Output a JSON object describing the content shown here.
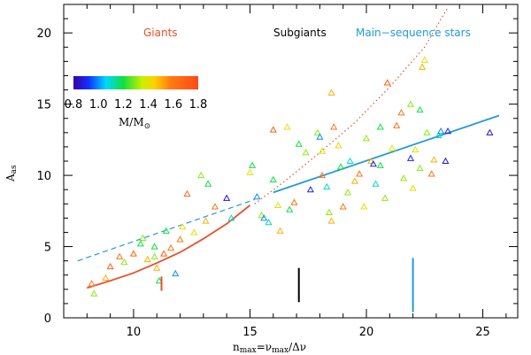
{
  "chart_data": {
    "type": "scatter",
    "title": "",
    "xlabel": "n",
    "xlabel_sub": "max",
    "xlabel_rest": "=ν",
    "xlabel_sub2": "max",
    "xlabel_tail": "/Δν",
    "ylabel": "A",
    "ylabel_sub": "as",
    "xlim": [
      7,
      26.5
    ],
    "ylim": [
      0,
      22
    ],
    "xticks": [
      10,
      15,
      20,
      25
    ],
    "yticks": [
      0,
      5,
      10,
      15,
      20
    ],
    "xtick_labels": [
      "10",
      "15",
      "20",
      "25"
    ],
    "ytick_labels": [
      "0",
      "5",
      "10",
      "15",
      "20"
    ],
    "groups": [
      {
        "name": "Giants",
        "color": "#e8502a",
        "marker_x": 11.2,
        "marker_y0": 1.9,
        "marker_y1": 2.9
      },
      {
        "name": "Subgiants",
        "color": "#000000",
        "marker_x": 17.1,
        "marker_y0": 1.1,
        "marker_y1": 3.5
      },
      {
        "name": "Main−sequence stars",
        "color": "#1f9bd8",
        "marker_x": 22.0,
        "marker_y0": 0.4,
        "marker_y1": 4.2
      }
    ],
    "colorbar": {
      "ticks": [
        0.8,
        1.0,
        1.2,
        1.4,
        1.6,
        1.8
      ],
      "tick_labels": [
        "0.8",
        "1.0",
        "1.2",
        "1.4",
        "1.6",
        "1.8"
      ],
      "label": "M/M",
      "label_sub": "⊙",
      "range": [
        0.8,
        1.8
      ]
    },
    "lines": [
      {
        "name": "giant-fit",
        "style": "solid",
        "color": "#e8502a",
        "x": [
          8.0,
          9.0,
          10.0,
          11.0,
          12.0,
          13.0,
          14.0,
          15.0
        ],
        "y": [
          2.1,
          2.6,
          3.15,
          3.85,
          4.6,
          5.55,
          6.6,
          7.9
        ]
      },
      {
        "name": "main-sequence-fit",
        "style": "solid",
        "color": "#1f9bd8",
        "x": [
          16.0,
          25.7
        ],
        "y": [
          8.8,
          14.2
        ]
      },
      {
        "name": "main-sequence-extrapolation",
        "style": "dashed",
        "color": "#1f9bd8",
        "x": [
          7.6,
          15.2
        ],
        "y": [
          4.0,
          8.3
        ]
      },
      {
        "name": "giant-extrapolation",
        "style": "dotted",
        "color": "#e8502a",
        "x": [
          15.2,
          16.5,
          18.0,
          19.5,
          21.0,
          22.5,
          23.5
        ],
        "y": [
          8.0,
          9.6,
          11.6,
          13.7,
          16.2,
          19.0,
          21.8
        ]
      }
    ],
    "points": [
      {
        "x": 8.2,
        "y": 2.4,
        "m": 1.6
      },
      {
        "x": 8.3,
        "y": 1.7,
        "m": 1.3
      },
      {
        "x": 8.8,
        "y": 2.8,
        "m": 1.5
      },
      {
        "x": 9.0,
        "y": 3.6,
        "m": 1.7
      },
      {
        "x": 9.4,
        "y": 4.3,
        "m": 1.6
      },
      {
        "x": 9.6,
        "y": 3.9,
        "m": 1.3
      },
      {
        "x": 10.0,
        "y": 4.5,
        "m": 1.7
      },
      {
        "x": 10.3,
        "y": 5.2,
        "m": 1.2
      },
      {
        "x": 10.4,
        "y": 5.6,
        "m": 1.3
      },
      {
        "x": 10.6,
        "y": 4.1,
        "m": 1.5
      },
      {
        "x": 10.9,
        "y": 5.0,
        "m": 1.2
      },
      {
        "x": 10.9,
        "y": 4.3,
        "m": 1.3
      },
      {
        "x": 11.0,
        "y": 3.5,
        "m": 1.5
      },
      {
        "x": 11.1,
        "y": 2.6,
        "m": 1.2
      },
      {
        "x": 11.3,
        "y": 4.5,
        "m": 1.7
      },
      {
        "x": 11.4,
        "y": 6.1,
        "m": 1.2
      },
      {
        "x": 11.6,
        "y": 4.9,
        "m": 1.6
      },
      {
        "x": 11.8,
        "y": 3.1,
        "m": 1.0
      },
      {
        "x": 12.0,
        "y": 5.5,
        "m": 1.6
      },
      {
        "x": 12.1,
        "y": 6.4,
        "m": 1.4
      },
      {
        "x": 12.3,
        "y": 8.7,
        "m": 1.7
      },
      {
        "x": 12.6,
        "y": 6.0,
        "m": 1.4
      },
      {
        "x": 12.9,
        "y": 10.0,
        "m": 1.3
      },
      {
        "x": 13.2,
        "y": 9.4,
        "m": 1.2
      },
      {
        "x": 13.1,
        "y": 6.8,
        "m": 1.5
      },
      {
        "x": 13.5,
        "y": 7.8,
        "m": 1.6
      },
      {
        "x": 14.0,
        "y": 8.4,
        "m": 0.85
      },
      {
        "x": 14.2,
        "y": 7.0,
        "m": 1.1
      },
      {
        "x": 15.0,
        "y": 10.2,
        "m": 1.4
      },
      {
        "x": 15.1,
        "y": 10.7,
        "m": 1.2
      },
      {
        "x": 15.3,
        "y": 8.5,
        "m": 1.0
      },
      {
        "x": 15.5,
        "y": 7.2,
        "m": 1.3
      },
      {
        "x": 15.6,
        "y": 7.0,
        "m": 1.0
      },
      {
        "x": 15.8,
        "y": 6.7,
        "m": 1.1
      },
      {
        "x": 16.0,
        "y": 13.2,
        "m": 1.7
      },
      {
        "x": 16.0,
        "y": 9.7,
        "m": 1.2
      },
      {
        "x": 16.2,
        "y": 7.9,
        "m": 1.4
      },
      {
        "x": 16.3,
        "y": 6.1,
        "m": 1.5
      },
      {
        "x": 16.6,
        "y": 13.4,
        "m": 1.4
      },
      {
        "x": 16.7,
        "y": 7.6,
        "m": 1.2
      },
      {
        "x": 16.9,
        "y": 8.1,
        "m": 1.6
      },
      {
        "x": 17.1,
        "y": 12.2,
        "m": 1.2
      },
      {
        "x": 17.4,
        "y": 11.6,
        "m": 1.3
      },
      {
        "x": 17.6,
        "y": 9.0,
        "m": 0.9
      },
      {
        "x": 17.9,
        "y": 13.0,
        "m": 1.3
      },
      {
        "x": 18.0,
        "y": 12.7,
        "m": 1.0
      },
      {
        "x": 18.1,
        "y": 11.7,
        "m": 1.4
      },
      {
        "x": 18.1,
        "y": 10.0,
        "m": 1.6
      },
      {
        "x": 18.3,
        "y": 9.2,
        "m": 1.1
      },
      {
        "x": 18.4,
        "y": 7.4,
        "m": 1.3
      },
      {
        "x": 18.5,
        "y": 6.8,
        "m": 1.5
      },
      {
        "x": 18.5,
        "y": 15.8,
        "m": 1.5
      },
      {
        "x": 18.6,
        "y": 13.4,
        "m": 1.6
      },
      {
        "x": 18.8,
        "y": 12.1,
        "m": 1.4
      },
      {
        "x": 18.9,
        "y": 10.6,
        "m": 1.2
      },
      {
        "x": 19.0,
        "y": 7.8,
        "m": 1.6
      },
      {
        "x": 19.2,
        "y": 8.8,
        "m": 1.3
      },
      {
        "x": 19.3,
        "y": 11.0,
        "m": 1.1
      },
      {
        "x": 19.5,
        "y": 9.6,
        "m": 1.5
      },
      {
        "x": 19.7,
        "y": 10.1,
        "m": 1.6
      },
      {
        "x": 19.9,
        "y": 7.8,
        "m": 1.4
      },
      {
        "x": 20.0,
        "y": 12.6,
        "m": 1.3
      },
      {
        "x": 20.2,
        "y": 11.0,
        "m": 1.5
      },
      {
        "x": 20.3,
        "y": 10.8,
        "m": 0.9
      },
      {
        "x": 20.4,
        "y": 9.4,
        "m": 1.1
      },
      {
        "x": 20.6,
        "y": 13.4,
        "m": 1.2
      },
      {
        "x": 20.6,
        "y": 10.7,
        "m": 1.2
      },
      {
        "x": 20.8,
        "y": 8.4,
        "m": 1.3
      },
      {
        "x": 20.9,
        "y": 16.5,
        "m": 1.7
      },
      {
        "x": 21.1,
        "y": 11.9,
        "m": 1.4
      },
      {
        "x": 21.3,
        "y": 13.5,
        "m": 1.6
      },
      {
        "x": 21.5,
        "y": 14.4,
        "m": 1.6
      },
      {
        "x": 21.6,
        "y": 9.8,
        "m": 1.3
      },
      {
        "x": 21.9,
        "y": 15.0,
        "m": 1.3
      },
      {
        "x": 21.9,
        "y": 11.2,
        "m": 0.9
      },
      {
        "x": 22.0,
        "y": 9.1,
        "m": 1.4
      },
      {
        "x": 22.1,
        "y": 11.8,
        "m": 1.4
      },
      {
        "x": 22.3,
        "y": 14.6,
        "m": 1.2
      },
      {
        "x": 22.3,
        "y": 10.5,
        "m": 1.3
      },
      {
        "x": 22.4,
        "y": 17.6,
        "m": 1.5
      },
      {
        "x": 22.5,
        "y": 18.1,
        "m": 1.4
      },
      {
        "x": 22.6,
        "y": 13.0,
        "m": 1.3
      },
      {
        "x": 22.8,
        "y": 10.1,
        "m": 1.6
      },
      {
        "x": 22.9,
        "y": 11.1,
        "m": 1.5
      },
      {
        "x": 23.1,
        "y": 12.8,
        "m": 1.1
      },
      {
        "x": 23.2,
        "y": 13.1,
        "m": 1.0
      },
      {
        "x": 23.4,
        "y": 11.0,
        "m": 0.85
      },
      {
        "x": 23.5,
        "y": 13.1,
        "m": 0.9
      },
      {
        "x": 25.3,
        "y": 13.0,
        "m": 0.85
      }
    ]
  }
}
